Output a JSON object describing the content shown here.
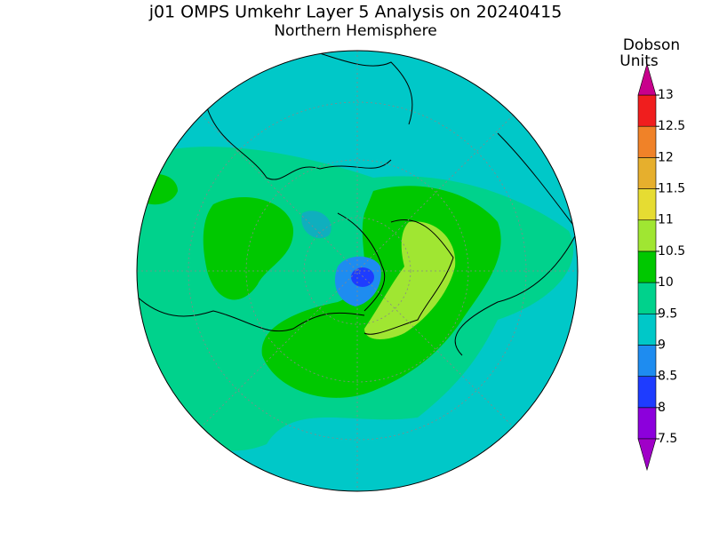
{
  "title": "j01 OMPS Umkehr Layer 5 Analysis on 20240415",
  "subtitle": "Northern Hemisphere",
  "colorbar": {
    "label_lines": [
      "Dobson",
      "Units"
    ],
    "levels": [
      7.5,
      8,
      8.5,
      9,
      9.5,
      10,
      10.5,
      11,
      11.5,
      12,
      12.5,
      13
    ],
    "colors": [
      "#8c00dc",
      "#1e3cff",
      "#1e8cf0",
      "#00c8c8",
      "#00d28c",
      "#00c800",
      "#a0e632",
      "#e6dc32",
      "#e6af2d",
      "#f08228",
      "#f01e1e"
    ],
    "under_color": "#a000c8",
    "over_color": "#c8008c"
  }
}
